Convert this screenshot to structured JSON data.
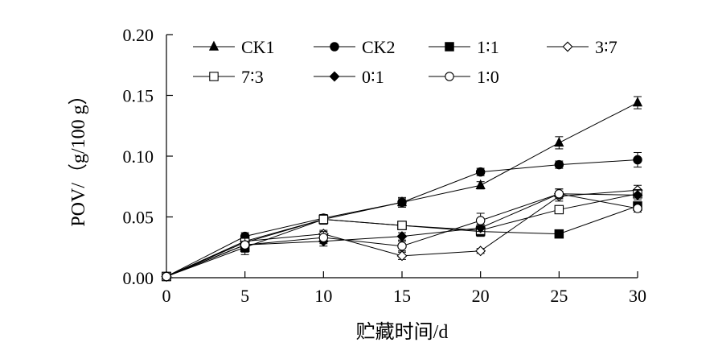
{
  "chart_data": {
    "type": "line",
    "xlabel": "贮藏时间/d",
    "ylabel": "POV/（g/100 g）",
    "xlim": [
      0,
      30
    ],
    "ylim": [
      0,
      0.2
    ],
    "x": [
      0,
      5,
      10,
      15,
      20,
      25,
      30
    ],
    "xticks": [
      "0",
      "5",
      "10",
      "15",
      "20",
      "25",
      "30"
    ],
    "yticks": [
      "0.00",
      "0.05",
      "0.10",
      "0.15",
      "0.20"
    ],
    "grid": false,
    "legend_position": "top",
    "series": [
      {
        "name": "CK1",
        "marker": "triangle-filled",
        "values": [
          0.001,
          0.03,
          0.048,
          0.062,
          0.076,
          0.111,
          0.144
        ],
        "errors": [
          0.002,
          0.004,
          0.003,
          0.004,
          0.003,
          0.005,
          0.005
        ]
      },
      {
        "name": "CK2",
        "marker": "circle-filled",
        "values": [
          0.001,
          0.034,
          0.049,
          0.062,
          0.087,
          0.093,
          0.097
        ],
        "errors": [
          0.002,
          0.003,
          0.003,
          0.003,
          0.003,
          0.003,
          0.006
        ]
      },
      {
        "name": "1∶1",
        "marker": "square-filled",
        "values": [
          0.001,
          0.025,
          0.048,
          0.043,
          0.038,
          0.036,
          0.059
        ],
        "errors": [
          0.002,
          0.004,
          0.003,
          0.003,
          0.004,
          0.003,
          0.003
        ]
      },
      {
        "name": "3∶7",
        "marker": "diamond-open",
        "values": [
          0.001,
          0.03,
          0.036,
          0.018,
          0.022,
          0.067,
          0.072
        ],
        "errors": [
          0.002,
          0.003,
          0.003,
          0.003,
          0.002,
          0.004,
          0.004
        ]
      },
      {
        "name": "7∶3",
        "marker": "square-open",
        "values": [
          0.001,
          0.029,
          0.048,
          0.043,
          0.039,
          0.056,
          0.069
        ],
        "errors": [
          0.002,
          0.003,
          0.004,
          0.003,
          0.004,
          0.003,
          0.003
        ]
      },
      {
        "name": "0∶1",
        "marker": "diamond-filled",
        "values": [
          0.001,
          0.027,
          0.03,
          0.034,
          0.041,
          0.069,
          0.068
        ],
        "errors": [
          0.002,
          0.008,
          0.004,
          0.003,
          0.003,
          0.004,
          0.004
        ]
      },
      {
        "name": "1∶0",
        "marker": "circle-open",
        "values": [
          0.001,
          0.027,
          0.033,
          0.026,
          0.047,
          0.069,
          0.057
        ],
        "errors": [
          0.002,
          0.003,
          0.005,
          0.004,
          0.006,
          0.004,
          0.003
        ]
      }
    ]
  }
}
